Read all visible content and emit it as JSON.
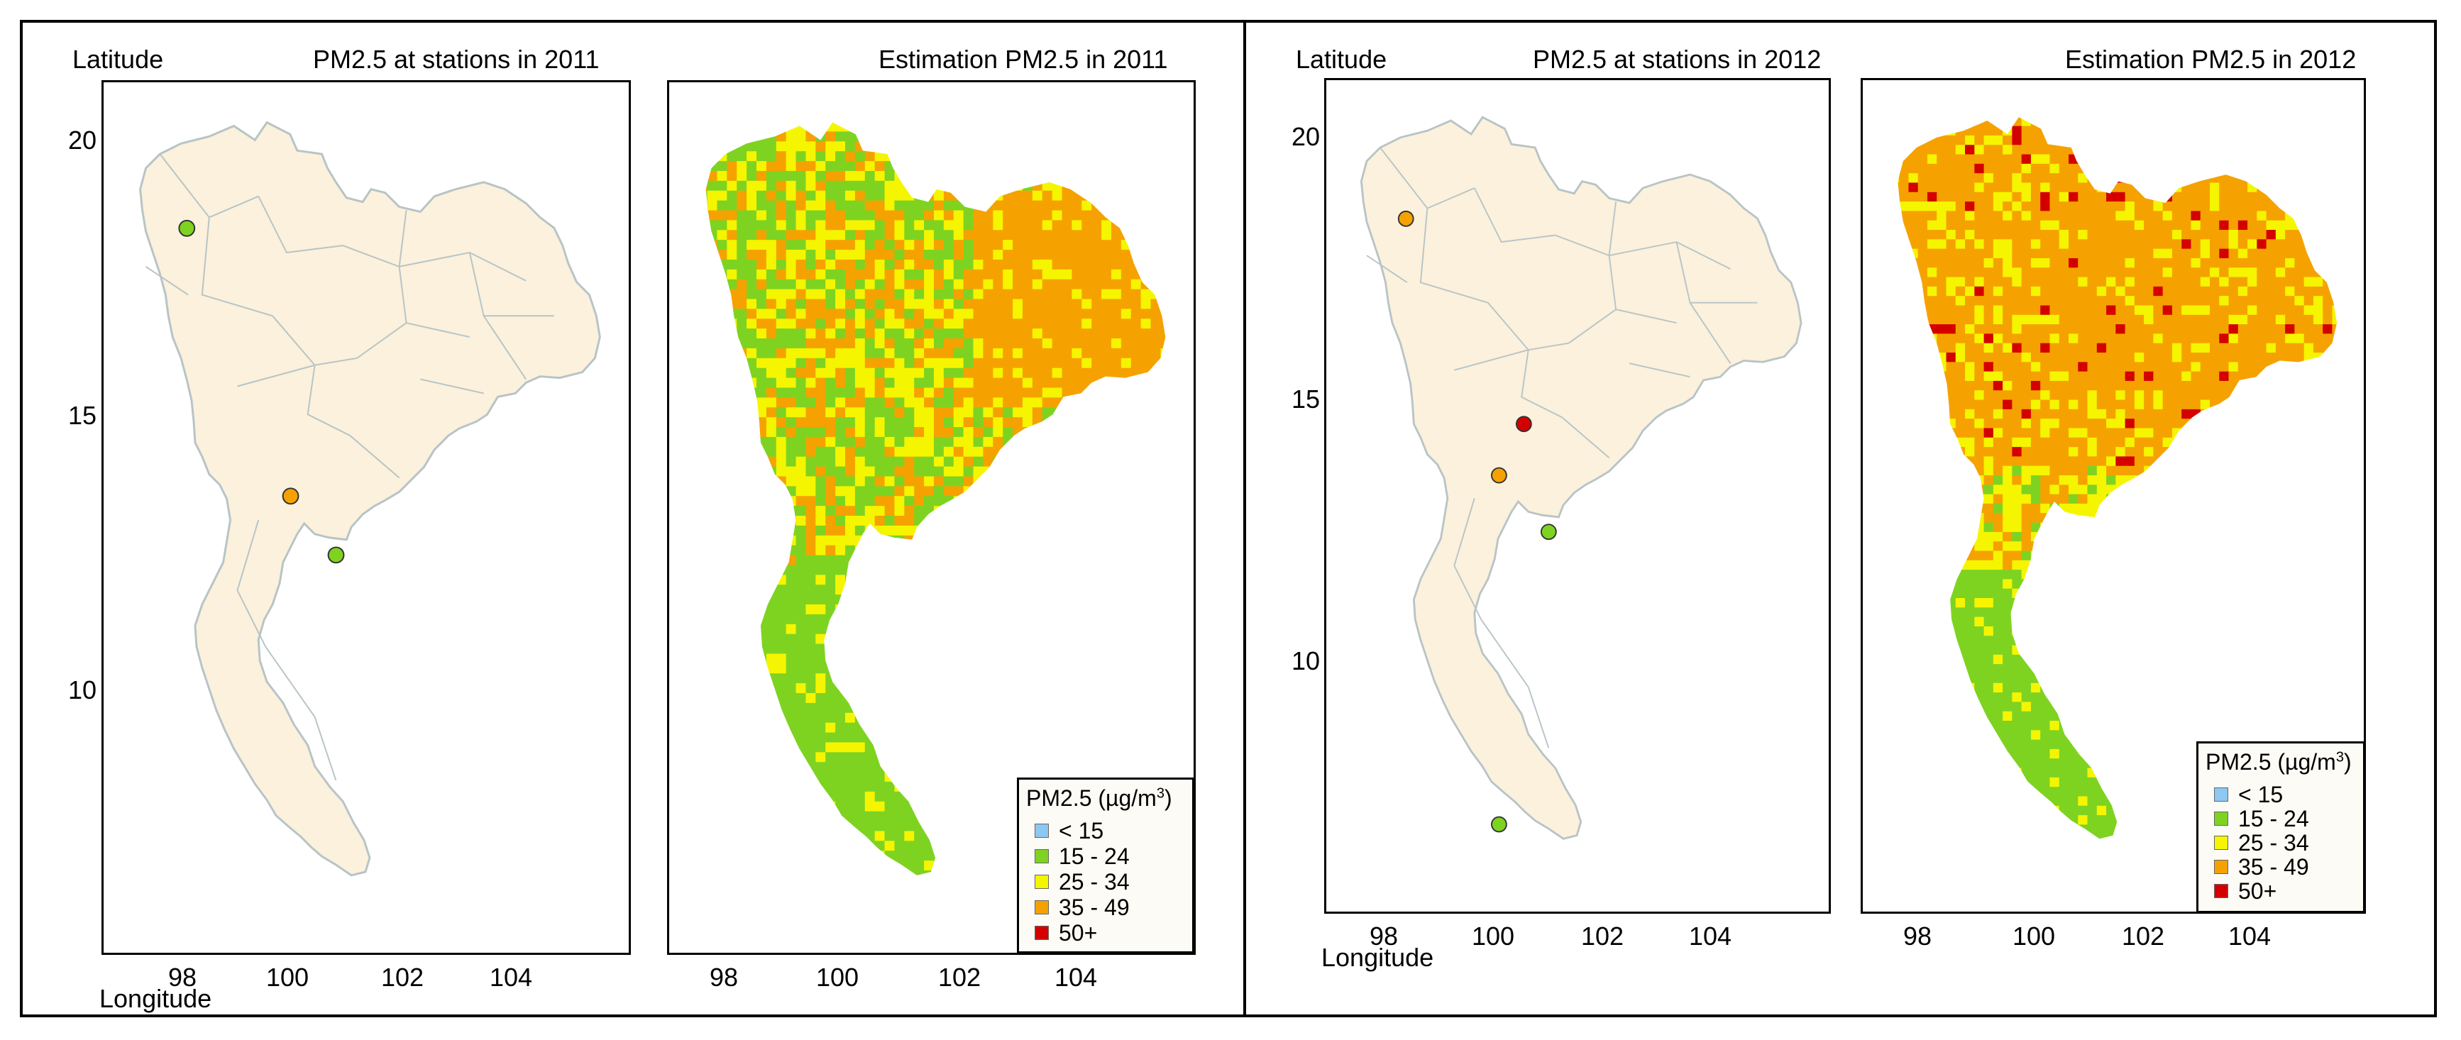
{
  "figure": {
    "legend": {
      "title": "PM2.5 (µg/m",
      "title_sup": "3",
      "title_close": ")",
      "classes": [
        {
          "label": "< 15",
          "color": "#8cc8f0"
        },
        {
          "label": "15 - 24",
          "color": "#7ed321"
        },
        {
          "label": "25 - 34",
          "color": "#f5f500"
        },
        {
          "label": "35 - 49",
          "color": "#f5a200"
        },
        {
          "label": "50+",
          "color": "#d40000"
        }
      ]
    },
    "colors": {
      "land": "#fbf1dc",
      "boundary": "#b8c4c6",
      "frame": "#000000"
    }
  },
  "panels": {
    "p2011": {
      "ylabel": "Latitude",
      "xlabel": "Longitude",
      "station_title": "PM2.5 at stations in 2011",
      "estimate_title": "Estimation PM2.5 in 2011",
      "yticks": [
        "20",
        "15",
        "10"
      ],
      "xticks_left": [
        "98",
        "100",
        "102",
        "104"
      ],
      "xticks_right": [
        "98",
        "100",
        "102",
        "104"
      ],
      "stations": [
        {
          "lon": 99.0,
          "lat": 18.8,
          "class": "15 - 24"
        },
        {
          "lon": 100.6,
          "lat": 13.8,
          "class": "35 - 49"
        },
        {
          "lon": 101.3,
          "lat": 12.7,
          "class": "15 - 24"
        }
      ]
    },
    "p2012": {
      "ylabel": "Latitude",
      "xlabel": "Longitude",
      "station_title": "PM2.5 at stations in 2012",
      "estimate_title": "Estimation PM2.5 in 2012",
      "yticks": [
        "20",
        "15",
        "10"
      ],
      "xticks_left": [
        "98",
        "100",
        "102",
        "104"
      ],
      "xticks_right": [
        "98",
        "100",
        "102",
        "104"
      ],
      "stations": [
        {
          "lon": 99.0,
          "lat": 18.8,
          "class": "35 - 49"
        },
        {
          "lon": 100.9,
          "lat": 14.8,
          "class": "50+"
        },
        {
          "lon": 100.5,
          "lat": 13.8,
          "class": "35 - 49"
        },
        {
          "lon": 101.3,
          "lat": 12.7,
          "class": "15 - 24"
        },
        {
          "lon": 100.5,
          "lat": 7.0,
          "class": "15 - 24"
        }
      ]
    }
  }
}
